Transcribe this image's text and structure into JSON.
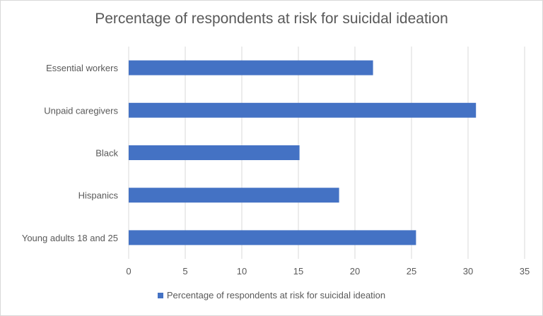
{
  "chart_data": {
    "type": "bar",
    "orientation": "horizontal",
    "title": "Percentage of respondents at risk for suicidal ideation",
    "categories": [
      "Essential workers",
      "Unpaid caregivers",
      "Black",
      "Hispanics",
      "Young adults 18 and 25"
    ],
    "series": [
      {
        "name": "Percentage of respondents at risk for suicidal ideation",
        "values": [
          21.6,
          30.7,
          15.1,
          18.6,
          25.4
        ],
        "color": "#4472c4"
      }
    ],
    "xlim": [
      0,
      35
    ],
    "xticks": [
      "0",
      "5",
      "10",
      "15",
      "20",
      "25",
      "30",
      "35"
    ],
    "grid": true,
    "legend": "bottom"
  }
}
